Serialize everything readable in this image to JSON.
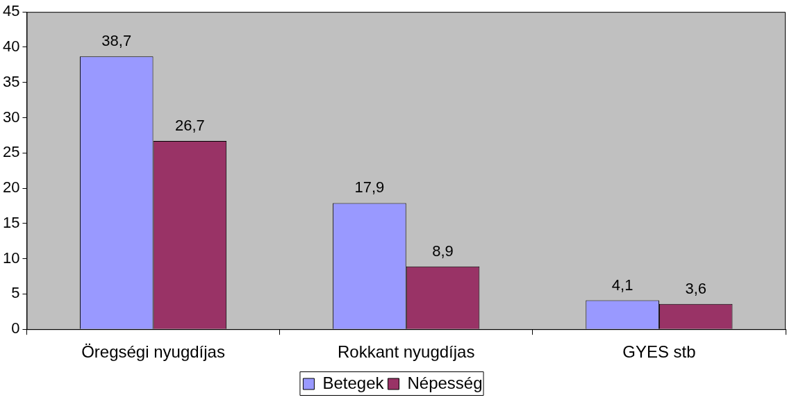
{
  "chart_data": {
    "type": "bar",
    "categories": [
      "Öregségi nyugdíjas",
      "Rokkant nyugdíjas",
      "GYES stb"
    ],
    "series": [
      {
        "name": "Betegek",
        "color": "#9999ff",
        "values": [
          38.7,
          17.9,
          4.1
        ],
        "value_labels": [
          "38,7",
          "17,9",
          "4,1"
        ]
      },
      {
        "name": "Népesség",
        "color": "#993366",
        "values": [
          26.7,
          8.9,
          3.6
        ],
        "value_labels": [
          "26,7",
          "8,9",
          "3,6"
        ]
      }
    ],
    "ylim": [
      0,
      45
    ],
    "yticks": [
      0,
      5,
      10,
      15,
      20,
      25,
      30,
      35,
      40,
      45
    ],
    "grid": false,
    "legend": "bottom"
  }
}
